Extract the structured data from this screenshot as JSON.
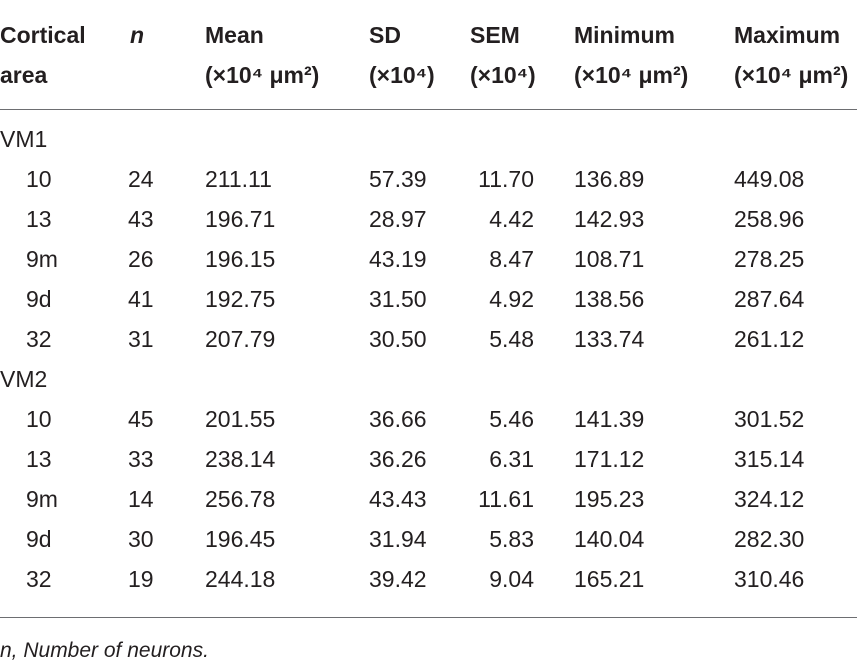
{
  "header": {
    "cortical_area": [
      "Cortical",
      "area"
    ],
    "n": "n",
    "mean": [
      "Mean",
      "(×10⁴ μm²)"
    ],
    "sd": [
      "SD",
      "(×10⁴)"
    ],
    "sem": [
      "SEM",
      "(×10⁴)"
    ],
    "minimum": [
      "Minimum",
      "(×10⁴ μm²)"
    ],
    "maximum": [
      "Maximum",
      "(×10⁴ μm²)"
    ]
  },
  "groups": [
    {
      "label": "VM1",
      "rows": [
        {
          "area": "10",
          "n": "24",
          "mean": "211.11",
          "sd": "57.39",
          "sem": "11.70",
          "min": "136.89",
          "max": "449.08"
        },
        {
          "area": "13",
          "n": "43",
          "mean": "196.71",
          "sd": "28.97",
          "sem": "4.42",
          "min": "142.93",
          "max": "258.96"
        },
        {
          "area": "9m",
          "n": "26",
          "mean": "196.15",
          "sd": "43.19",
          "sem": "8.47",
          "min": "108.71",
          "max": "278.25"
        },
        {
          "area": "9d",
          "n": "41",
          "mean": "192.75",
          "sd": "31.50",
          "sem": "4.92",
          "min": "138.56",
          "max": "287.64"
        },
        {
          "area": "32",
          "n": "31",
          "mean": "207.79",
          "sd": "30.50",
          "sem": "5.48",
          "min": "133.74",
          "max": "261.12"
        }
      ]
    },
    {
      "label": "VM2",
      "rows": [
        {
          "area": "10",
          "n": "45",
          "mean": "201.55",
          "sd": "36.66",
          "sem": "5.46",
          "min": "141.39",
          "max": "301.52"
        },
        {
          "area": "13",
          "n": "33",
          "mean": "238.14",
          "sd": "36.26",
          "sem": "6.31",
          "min": "171.12",
          "max": "315.14"
        },
        {
          "area": "9m",
          "n": "14",
          "mean": "256.78",
          "sd": "43.43",
          "sem": "11.61",
          "min": "195.23",
          "max": "324.12"
        },
        {
          "area": "9d",
          "n": "30",
          "mean": "196.45",
          "sd": "31.94",
          "sem": "5.83",
          "min": "140.04",
          "max": "282.30"
        },
        {
          "area": "32",
          "n": "19",
          "mean": "244.18",
          "sd": "39.42",
          "sem": "9.04",
          "min": "165.21",
          "max": "310.46"
        }
      ]
    }
  ],
  "footnote": "n, Number of neurons."
}
